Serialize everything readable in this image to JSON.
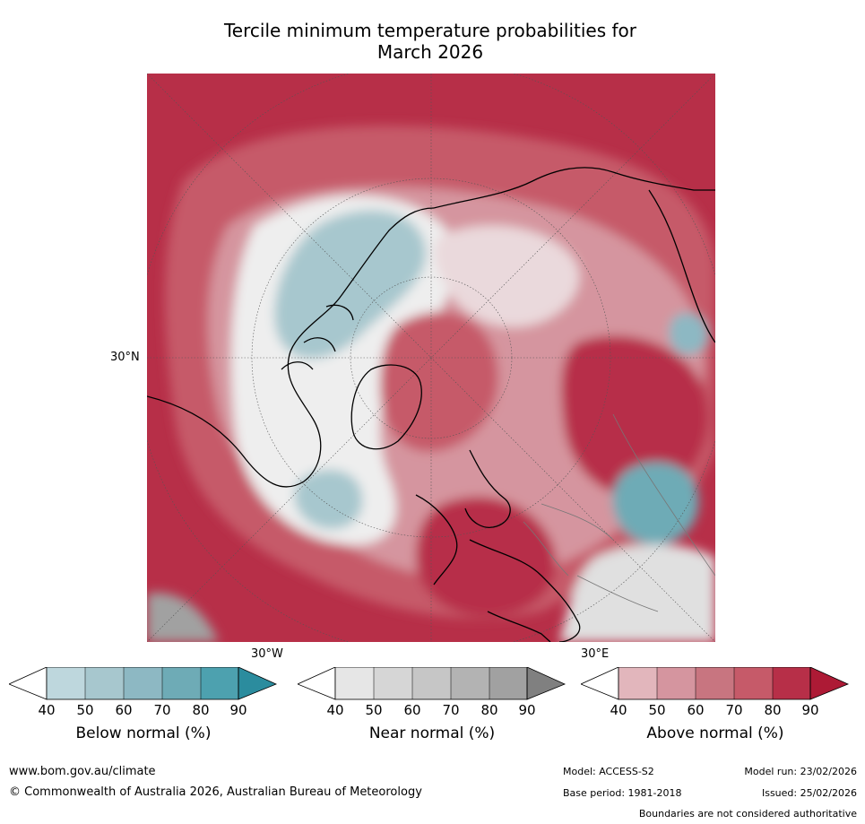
{
  "title": {
    "line1": "Tercile minimum temperature probabilities for",
    "line2": "March 2026"
  },
  "map": {
    "latitude_label": "30°N",
    "longitude_labels": [
      "30°W",
      "30°E"
    ]
  },
  "colorbars": [
    {
      "name": "below",
      "label": "Below normal (%)",
      "ticks": [
        "40",
        "50",
        "60",
        "70",
        "80",
        "90"
      ],
      "colors": [
        "#bed7dd",
        "#a7c7ce",
        "#8db8c3",
        "#6eabb6",
        "#4da1af",
        "#2b8c9e"
      ]
    },
    {
      "name": "near",
      "label": "Near normal (%)",
      "ticks": [
        "40",
        "50",
        "60",
        "70",
        "80",
        "90"
      ],
      "colors": [
        "#e6e6e6",
        "#d6d6d6",
        "#c6c6c6",
        "#b3b3b3",
        "#a1a1a1",
        "#808080"
      ]
    },
    {
      "name": "above",
      "label": "Above normal (%)",
      "ticks": [
        "40",
        "50",
        "60",
        "70",
        "80",
        "90"
      ],
      "colors": [
        "#e2b6bc",
        "#d5959f",
        "#c87580",
        "#c65a69",
        "#b72f48",
        "#ad1a35"
      ]
    }
  ],
  "footer": {
    "url": "www.bom.gov.au/climate",
    "copyright": "© Commonwealth of Australia 2026, Australian Bureau of Meteorology",
    "model": "Model: ACCESS-S2",
    "base_period": "Base period: 1981-2018",
    "model_run": "Model run: 23/02/2026",
    "issued": "Issued: 25/02/2026",
    "disclaimer": "Boundaries are not considered authoritative"
  }
}
